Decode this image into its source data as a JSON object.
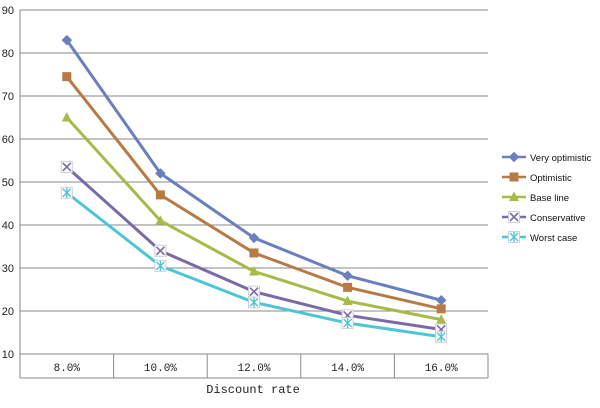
{
  "chart_data": {
    "type": "line",
    "title": "",
    "xlabel": "Discount rate",
    "ylabel": "",
    "categories": [
      "8.0%",
      "10.0%",
      "12.0%",
      "14.0%",
      "16.0%"
    ],
    "ylim": [
      10,
      90
    ],
    "yticks": [
      10,
      20,
      30,
      40,
      50,
      60,
      70,
      80,
      90
    ],
    "grid": true,
    "legend_position": "right",
    "series": [
      {
        "name": "Very optimistic",
        "values": [
          83,
          52,
          37,
          28.2,
          22.5
        ],
        "color": "#6a7fbf",
        "marker": "diamond"
      },
      {
        "name": "Optimistic",
        "values": [
          74.5,
          47,
          33.5,
          25.5,
          20.5
        ],
        "color": "#b87a45",
        "marker": "square"
      },
      {
        "name": "Base line",
        "values": [
          65,
          41,
          29.2,
          22.3,
          18
        ],
        "color": "#a8ba48",
        "marker": "triangle"
      },
      {
        "name": "Conservative",
        "values": [
          53.5,
          34,
          24.5,
          19,
          15.7
        ],
        "color": "#7a6ba8",
        "marker": "x"
      },
      {
        "name": "Worst case",
        "values": [
          47.5,
          30.5,
          22,
          17.2,
          14
        ],
        "color": "#4cc6d4",
        "marker": "star"
      }
    ]
  }
}
